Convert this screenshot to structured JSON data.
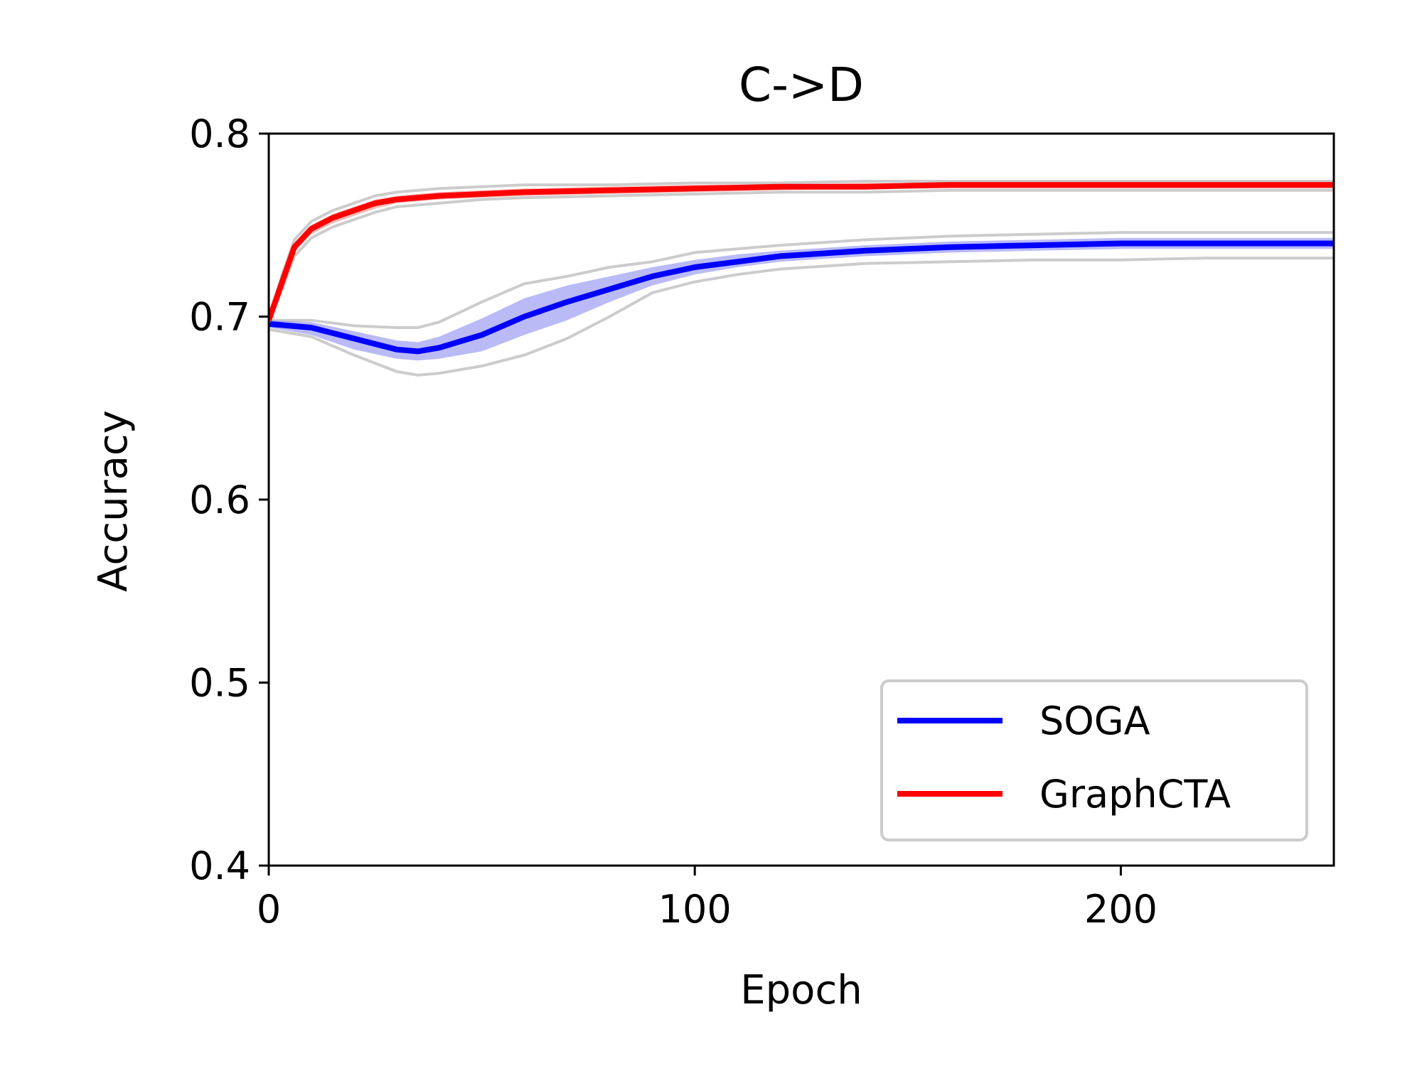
{
  "chart_data": {
    "type": "line",
    "title": "C->D",
    "xlabel": "Epoch",
    "ylabel": "Accuracy",
    "xlim": [
      0,
      250
    ],
    "ylim": [
      0.4,
      0.8
    ],
    "xticks": [
      0,
      100,
      200
    ],
    "xtick_labels": [
      "0",
      "100",
      "200"
    ],
    "yticks": [
      0.4,
      0.5,
      0.6,
      0.7,
      0.8
    ],
    "ytick_labels": [
      "0.4",
      "0.5",
      "0.6",
      "0.7",
      "0.8"
    ],
    "legend_position": "lower-right",
    "series": [
      {
        "name": "SOGA",
        "color": "#0000ff",
        "band_color": "#6666ee",
        "x": [
          0,
          10,
          20,
          30,
          35,
          40,
          50,
          60,
          70,
          80,
          90,
          100,
          110,
          120,
          140,
          160,
          180,
          200,
          220,
          250
        ],
        "mean": [
          0.696,
          0.694,
          0.688,
          0.682,
          0.681,
          0.683,
          0.69,
          0.7,
          0.708,
          0.715,
          0.722,
          0.727,
          0.73,
          0.733,
          0.736,
          0.738,
          0.739,
          0.74,
          0.74,
          0.74
        ],
        "lower": [
          0.694,
          0.69,
          0.682,
          0.677,
          0.676,
          0.677,
          0.681,
          0.69,
          0.698,
          0.708,
          0.717,
          0.723,
          0.727,
          0.73,
          0.733,
          0.735,
          0.736,
          0.737,
          0.737,
          0.737
        ],
        "upper": [
          0.698,
          0.697,
          0.692,
          0.687,
          0.686,
          0.689,
          0.699,
          0.71,
          0.717,
          0.722,
          0.727,
          0.731,
          0.734,
          0.736,
          0.739,
          0.741,
          0.742,
          0.743,
          0.743,
          0.743
        ],
        "run_min": [
          0.693,
          0.689,
          0.679,
          0.67,
          0.668,
          0.669,
          0.673,
          0.679,
          0.688,
          0.7,
          0.713,
          0.719,
          0.723,
          0.726,
          0.729,
          0.73,
          0.731,
          0.731,
          0.732,
          0.732
        ],
        "run_max": [
          0.698,
          0.698,
          0.695,
          0.694,
          0.694,
          0.697,
          0.708,
          0.718,
          0.722,
          0.727,
          0.73,
          0.735,
          0.737,
          0.739,
          0.742,
          0.744,
          0.745,
          0.746,
          0.746,
          0.746
        ]
      },
      {
        "name": "GraphCTA",
        "color": "#ff0000",
        "band_color": "#ee6666",
        "x": [
          0,
          3,
          6,
          10,
          15,
          20,
          25,
          30,
          40,
          50,
          60,
          80,
          100,
          120,
          140,
          160,
          180,
          200,
          220,
          250
        ],
        "mean": [
          0.698,
          0.718,
          0.738,
          0.748,
          0.754,
          0.758,
          0.762,
          0.764,
          0.766,
          0.767,
          0.768,
          0.769,
          0.77,
          0.771,
          0.771,
          0.772,
          0.772,
          0.772,
          0.772,
          0.772
        ],
        "lower": [
          0.698,
          0.716,
          0.735,
          0.745,
          0.751,
          0.755,
          0.759,
          0.762,
          0.764,
          0.765,
          0.766,
          0.767,
          0.768,
          0.769,
          0.77,
          0.77,
          0.77,
          0.77,
          0.77,
          0.77
        ],
        "upper": [
          0.698,
          0.72,
          0.74,
          0.75,
          0.756,
          0.76,
          0.764,
          0.766,
          0.768,
          0.769,
          0.77,
          0.771,
          0.772,
          0.772,
          0.773,
          0.773,
          0.773,
          0.773,
          0.773,
          0.773
        ],
        "run_min": [
          0.697,
          0.714,
          0.733,
          0.743,
          0.749,
          0.753,
          0.757,
          0.76,
          0.762,
          0.764,
          0.765,
          0.766,
          0.767,
          0.768,
          0.768,
          0.769,
          0.769,
          0.769,
          0.769,
          0.769
        ],
        "run_max": [
          0.699,
          0.722,
          0.742,
          0.752,
          0.758,
          0.762,
          0.766,
          0.768,
          0.77,
          0.771,
          0.772,
          0.772,
          0.773,
          0.773,
          0.774,
          0.774,
          0.774,
          0.774,
          0.774,
          0.774
        ]
      }
    ]
  }
}
